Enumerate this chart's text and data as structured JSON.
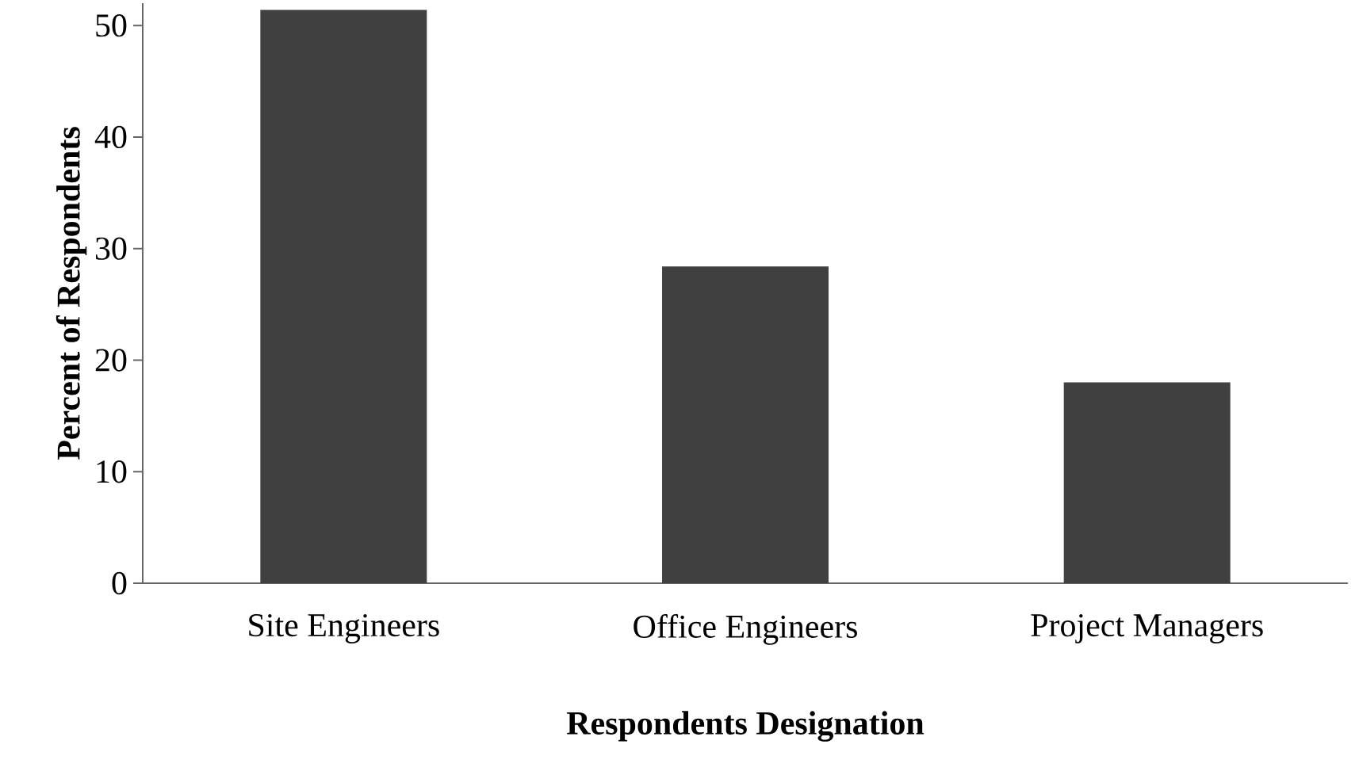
{
  "chart_data": {
    "type": "bar",
    "xlabel": "Respondents Designation",
    "ylabel": "Percent of Respondents",
    "categories": [
      "Site Engineers",
      "Office Engineers",
      "Project Managers"
    ],
    "values": [
      51.4,
      28.4,
      18.0
    ],
    "color": "#404040",
    "ylim": [
      0,
      52
    ],
    "yticks": [
      0,
      10,
      20,
      30,
      40,
      50
    ]
  }
}
